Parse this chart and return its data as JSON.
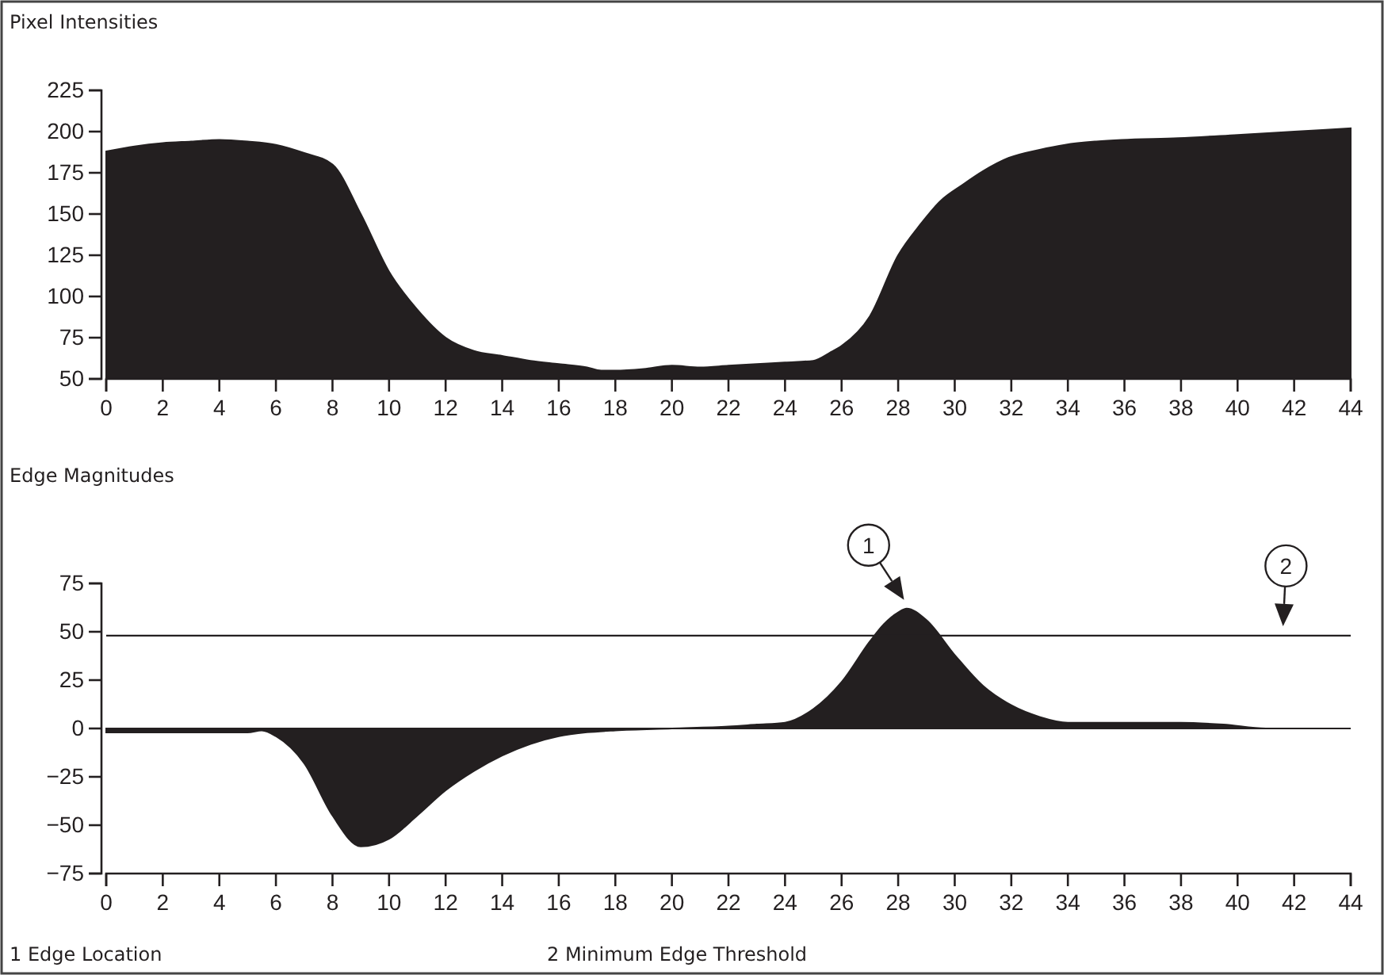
{
  "chart_data": [
    {
      "type": "area",
      "title": "Pixel Intensities",
      "x": [
        0,
        1,
        2,
        3,
        4,
        5,
        6,
        7,
        8,
        9,
        10,
        11,
        12,
        13,
        14,
        15,
        16,
        17,
        17.5,
        18,
        19,
        20,
        21,
        22,
        23,
        24,
        25,
        25.6,
        26,
        27,
        28,
        28.8,
        29.5,
        30.3,
        31,
        31.9,
        33,
        33.9,
        35,
        35.9,
        37.9,
        40,
        42,
        44
      ],
      "series": [
        {
          "color": "#231f20",
          "values": [
            188,
            191,
            193,
            194,
            195,
            194,
            192,
            187,
            180,
            150,
            115,
            92,
            75,
            67,
            64,
            61,
            59,
            57,
            55,
            55,
            56,
            58,
            57,
            58,
            59,
            60,
            61,
            66,
            70,
            88,
            125,
            144,
            158,
            168,
            176,
            184,
            189,
            192,
            194,
            195,
            196,
            198,
            200,
            202
          ]
        }
      ],
      "xlim": [
        0,
        44
      ],
      "ylim": [
        50,
        225
      ],
      "xticks": [
        0,
        2,
        4,
        6,
        8,
        10,
        12,
        14,
        16,
        18,
        20,
        22,
        24,
        26,
        28,
        30,
        32,
        34,
        36,
        38,
        40,
        42,
        44
      ],
      "yticks": [
        50,
        75,
        100,
        125,
        150,
        175,
        200,
        225
      ]
    },
    {
      "type": "area",
      "title": "Edge Magnitudes",
      "x": [
        0,
        2,
        4,
        5,
        5.5,
        6,
        7,
        8,
        9,
        10,
        11,
        12,
        13,
        14,
        15,
        16,
        17,
        18,
        20,
        22,
        23,
        24,
        25,
        26,
        27,
        27.5,
        28,
        28.3,
        29,
        30,
        31,
        32,
        33,
        34,
        36,
        38,
        39.5,
        41,
        42,
        44
      ],
      "series": [
        {
          "color": "#231f20",
          "values": [
            -2,
            -2,
            -2,
            -2,
            -1,
            -4,
            -18,
            -45,
            -61,
            -57,
            -45,
            -32,
            -22,
            -14,
            -8,
            -4,
            -2,
            -1,
            0,
            1,
            2,
            3,
            10,
            24,
            45,
            54,
            60,
            62,
            56,
            38,
            22,
            12,
            6,
            3,
            3,
            3,
            2,
            0,
            0,
            0
          ]
        }
      ],
      "xlim": [
        0,
        44
      ],
      "ylim": [
        -75,
        75
      ],
      "xticks": [
        0,
        2,
        4,
        6,
        8,
        10,
        12,
        14,
        16,
        18,
        20,
        22,
        24,
        26,
        28,
        30,
        32,
        34,
        36,
        38,
        40,
        42,
        44
      ],
      "yticks": [
        -75,
        -50,
        -25,
        0,
        25,
        50,
        75
      ],
      "ref_lines": [
        {
          "axis": "y",
          "value": 48,
          "color": "#231f20"
        }
      ],
      "annotations": [
        {
          "text": "1",
          "x": 28.3,
          "y": 62
        },
        {
          "text": "2",
          "x": 41.6,
          "y": 48
        },
        "1  Edge Location",
        "2  Minimum Edge Threshold"
      ]
    }
  ]
}
